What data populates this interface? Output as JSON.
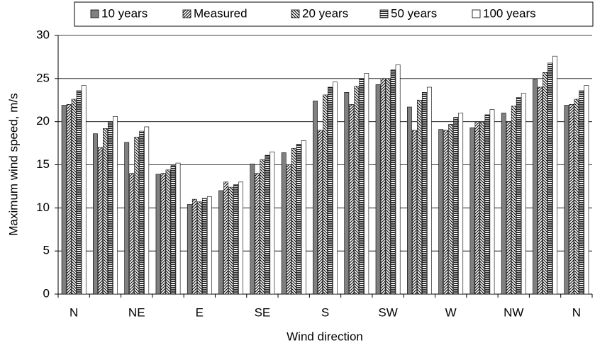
{
  "chart_data": {
    "type": "bar",
    "x_label": "Wind direction",
    "y_label": "Maximum wind speed, m/s",
    "categories": [
      "N",
      null,
      "NE",
      null,
      "E",
      null,
      "SE",
      null,
      "S",
      null,
      "SW",
      null,
      "W",
      null,
      "NW",
      null,
      "N"
    ],
    "series": [
      {
        "name": "10 years",
        "color": "#808080",
        "pattern": "solid",
        "values": [
          21.9,
          18.6,
          17.6,
          13.9,
          10.4,
          12.0,
          15.1,
          16.4,
          22.4,
          23.4,
          24.3,
          21.7,
          19.1,
          19.3,
          21.0,
          24.9,
          21.9
        ]
      },
      {
        "name": "Measured",
        "color": "#ffffff",
        "pattern": "diagonal",
        "values": [
          22.0,
          17.0,
          14.0,
          14.0,
          11.0,
          13.0,
          14.0,
          15.0,
          19.0,
          22.0,
          25.0,
          19.0,
          19.0,
          20.0,
          20.0,
          24.0,
          22.0
        ]
      },
      {
        "name": "20 years",
        "color": "#ffffff",
        "pattern": "crosshatch",
        "values": [
          22.6,
          19.2,
          18.2,
          14.4,
          10.7,
          12.4,
          15.6,
          16.9,
          23.1,
          24.1,
          25.0,
          22.5,
          19.7,
          19.9,
          21.8,
          25.7,
          22.6
        ]
      },
      {
        "name": "50 years",
        "color": "#ffffff",
        "pattern": "horizontal",
        "values": [
          23.6,
          20.0,
          18.9,
          14.9,
          11.1,
          12.7,
          16.1,
          17.4,
          24.0,
          25.0,
          26.0,
          23.4,
          20.5,
          20.8,
          22.8,
          26.8,
          23.6
        ]
      },
      {
        "name": "100 years",
        "color": "#ffffff",
        "pattern": "solid",
        "values": [
          24.2,
          20.6,
          19.4,
          15.2,
          11.3,
          13.0,
          16.5,
          17.8,
          24.6,
          25.6,
          26.6,
          24.0,
          21.0,
          21.4,
          23.3,
          27.6,
          24.2
        ]
      }
    ],
    "ylim": [
      0,
      30
    ],
    "yticks": [
      0,
      5,
      10,
      15,
      20,
      25,
      30
    ],
    "grid": true,
    "legend": "top"
  }
}
